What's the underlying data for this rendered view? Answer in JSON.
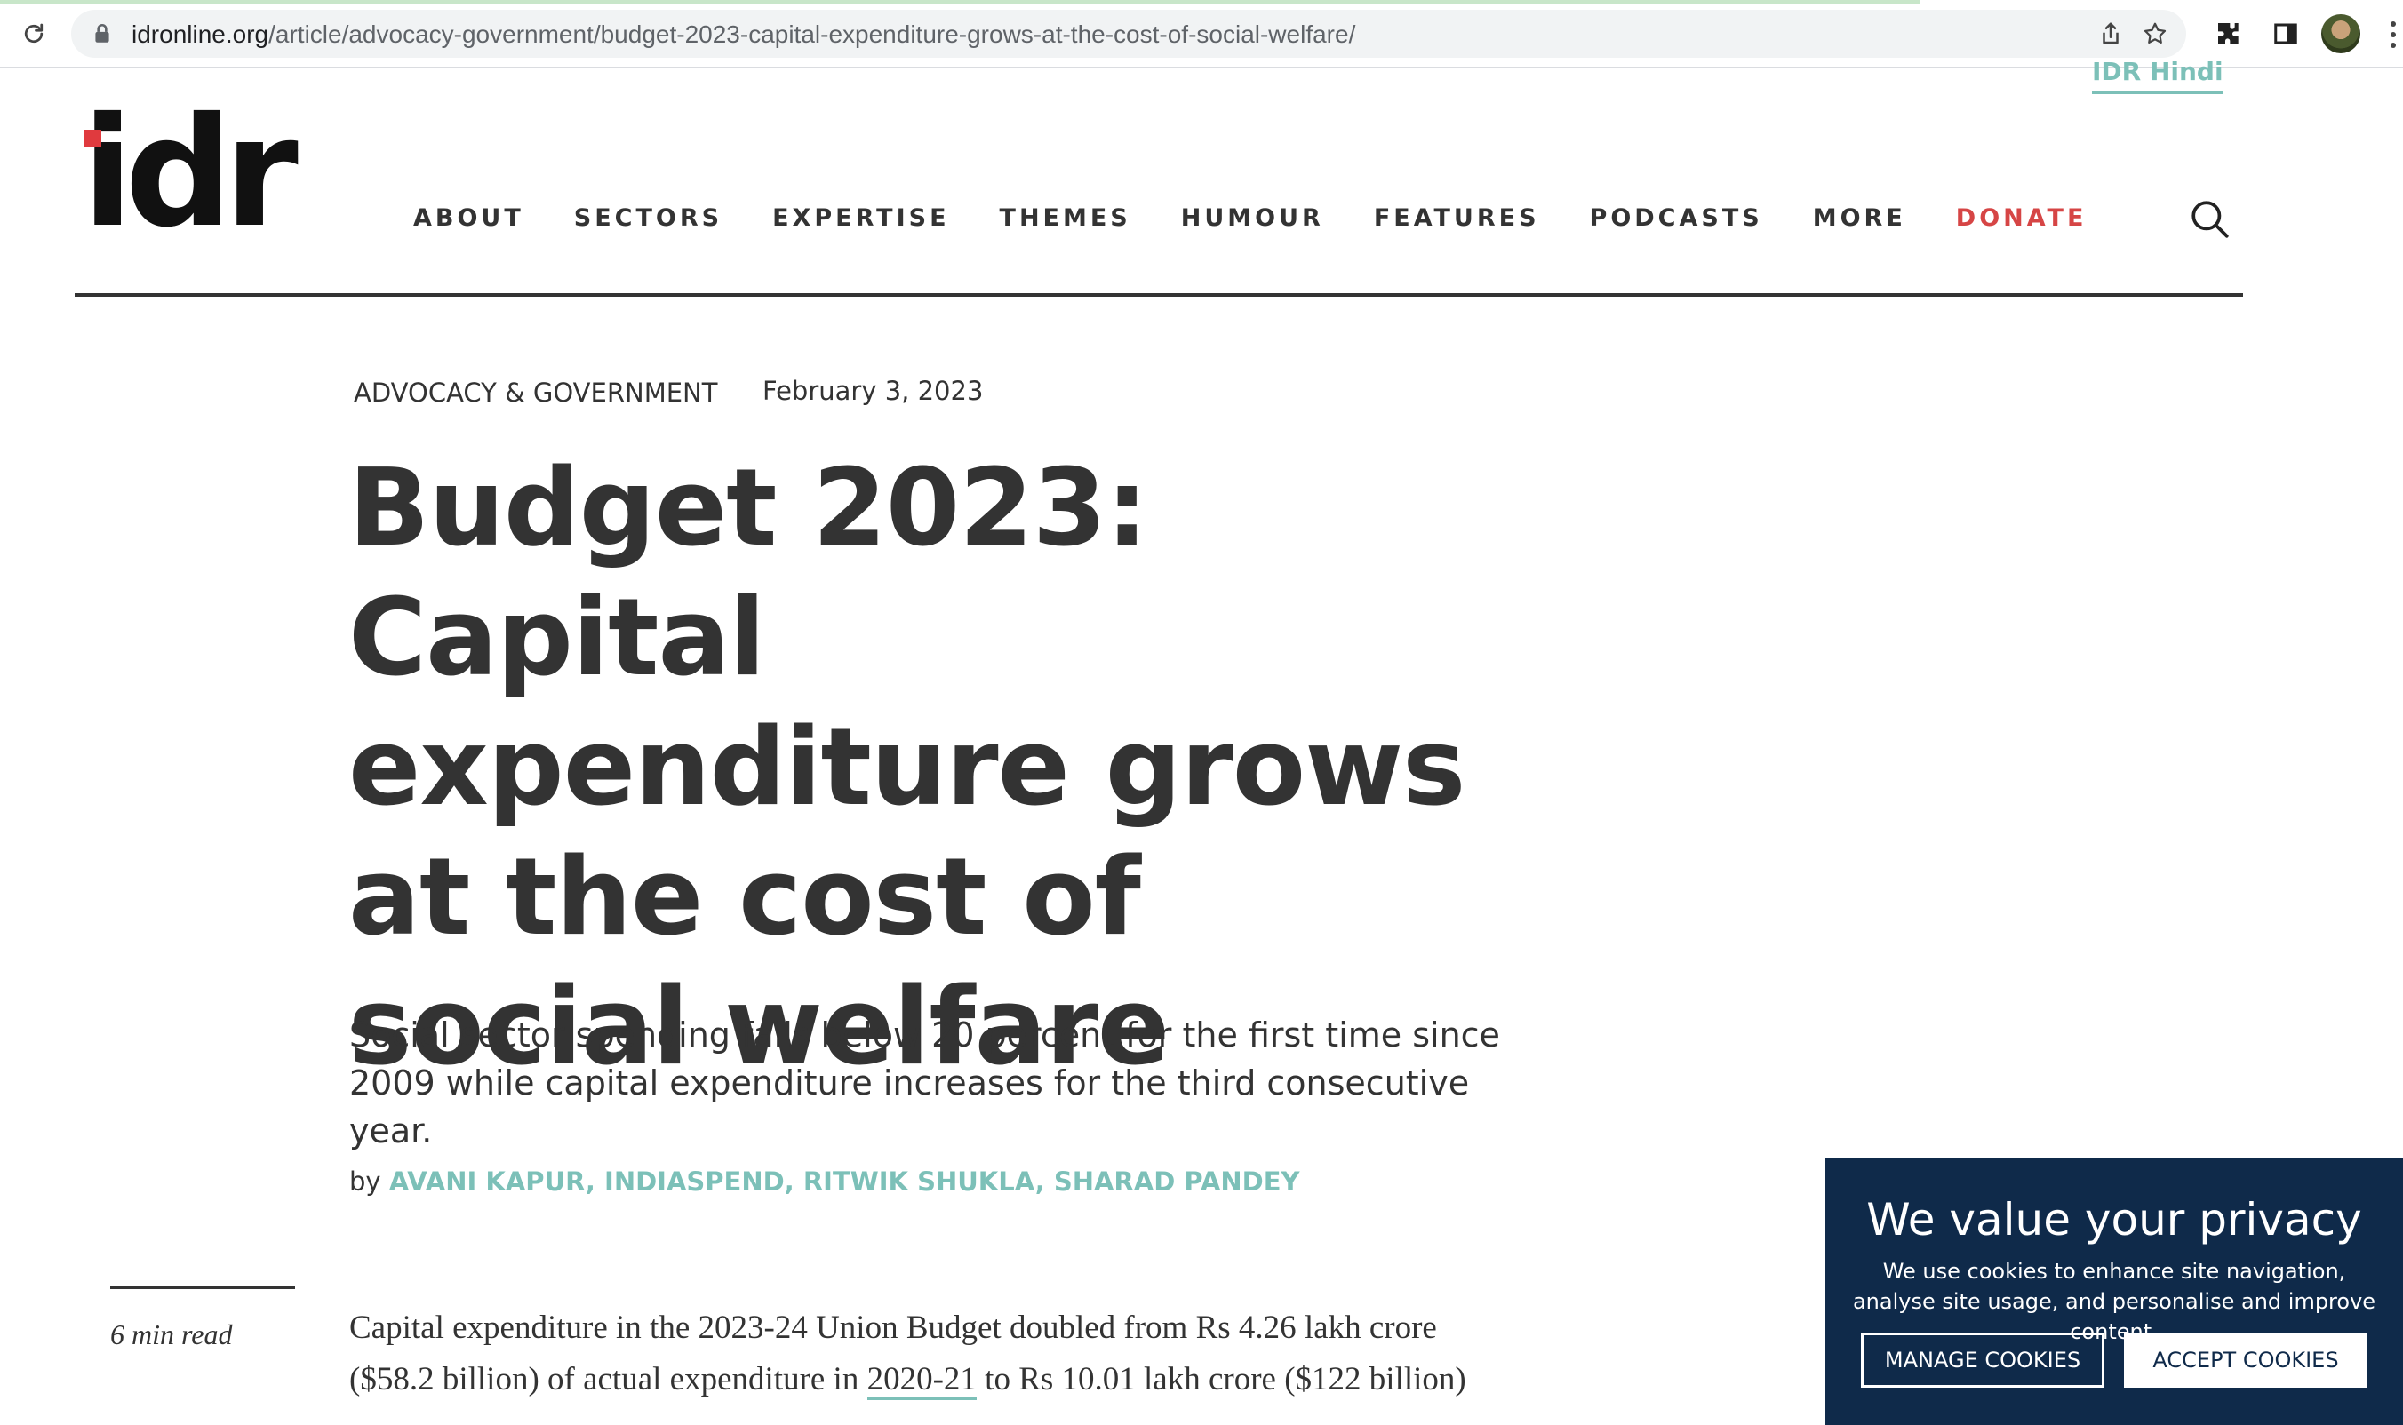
{
  "browser": {
    "url_domain": "idronline.org",
    "url_path": "/article/advocacy-government/budget-2023-capital-expenditure-grows-at-the-cost-of-social-welfare/"
  },
  "header": {
    "idr_hindi": "IDR Hindi",
    "logo_text": "idr",
    "nav": [
      "ABOUT",
      "SECTORS",
      "EXPERTISE",
      "THEMES",
      "HUMOUR",
      "FEATURES",
      "PODCASTS",
      "MORE",
      "DONATE"
    ]
  },
  "article": {
    "category": "ADVOCACY & GOVERNMENT",
    "date": "February 3, 2023",
    "title": "Budget 2023: Capital expenditure grows at the cost of social welfare",
    "subtitle": "Social sector spending falls below 20 percent for the first time since 2009 while capital expenditure increases for the third consecutive year.",
    "by": "by",
    "authors": "AVANI KAPUR, INDIASPEND, RITWIK SHUKLA, SHARAD PANDEY",
    "read_time": "6 min read",
    "body_part1": "Capital expenditure in the 2023-24 Union Budget doubled from Rs 4.26 lakh crore ($58.2 billion) of actual expenditure in ",
    "body_link": "2020-21",
    "body_part2": " to Rs 10.01 lakh crore ($122 billion)"
  },
  "cookie": {
    "title": "We value your privacy",
    "text": "We use cookies to enhance site navigation, analyse site usage, and personalise and improve content.",
    "manage": "MANAGE COOKIES",
    "accept": "ACCEPT COOKIES"
  },
  "colors": {
    "accent": "#7cc0b8",
    "donate": "#d64545",
    "cookie_bg": "#0f2a4a",
    "logo_red": "#e03a3e"
  }
}
